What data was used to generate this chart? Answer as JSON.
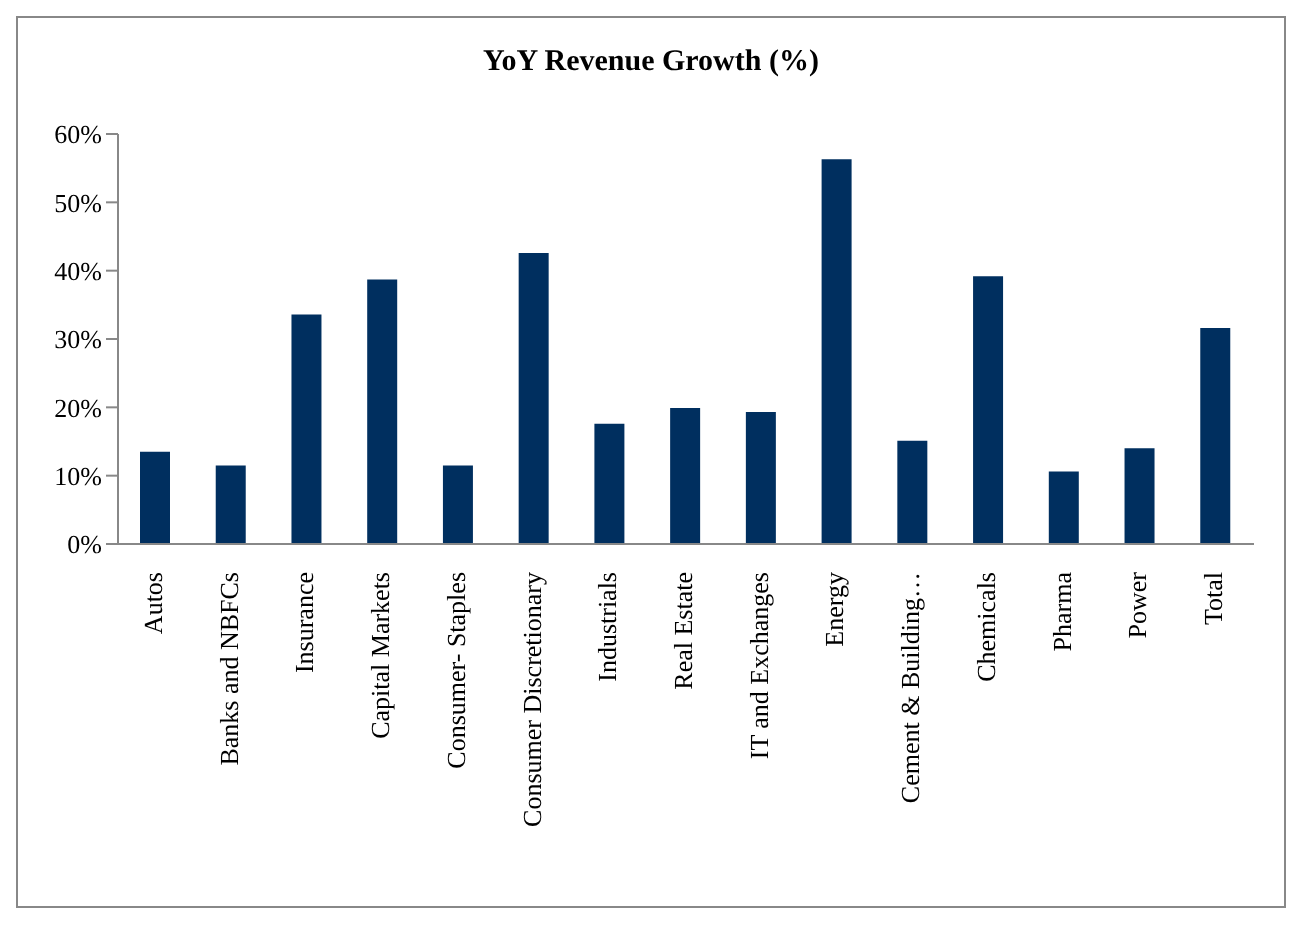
{
  "chart_data": {
    "type": "bar",
    "title": "YoY Revenue Growth (%)",
    "categories": [
      "Autos",
      "Banks and NBFCs",
      "Insurance",
      "Capital Markets",
      "Consumer- Staples",
      "Consumer Discretionary",
      "Industrials",
      "Real Estate",
      "IT and Exchanges",
      "Energy",
      "Cement & Building…",
      "Chemicals",
      "Pharma",
      "Power",
      "Total"
    ],
    "values": [
      13.5,
      11.5,
      33.6,
      38.7,
      11.5,
      42.6,
      17.6,
      19.9,
      19.3,
      56.3,
      15.1,
      39.2,
      10.6,
      14.0,
      31.6
    ],
    "color": "#002f5f",
    "ylim": [
      0,
      60
    ],
    "yticks": [
      {
        "value": 0,
        "label": "0%"
      },
      {
        "value": 10,
        "label": "10%"
      },
      {
        "value": 20,
        "label": "20%"
      },
      {
        "value": 30,
        "label": "30%"
      },
      {
        "value": 40,
        "label": "40%"
      },
      {
        "value": 50,
        "label": "50%"
      },
      {
        "value": 60,
        "label": "60%"
      }
    ],
    "grid": false,
    "legend": false
  }
}
